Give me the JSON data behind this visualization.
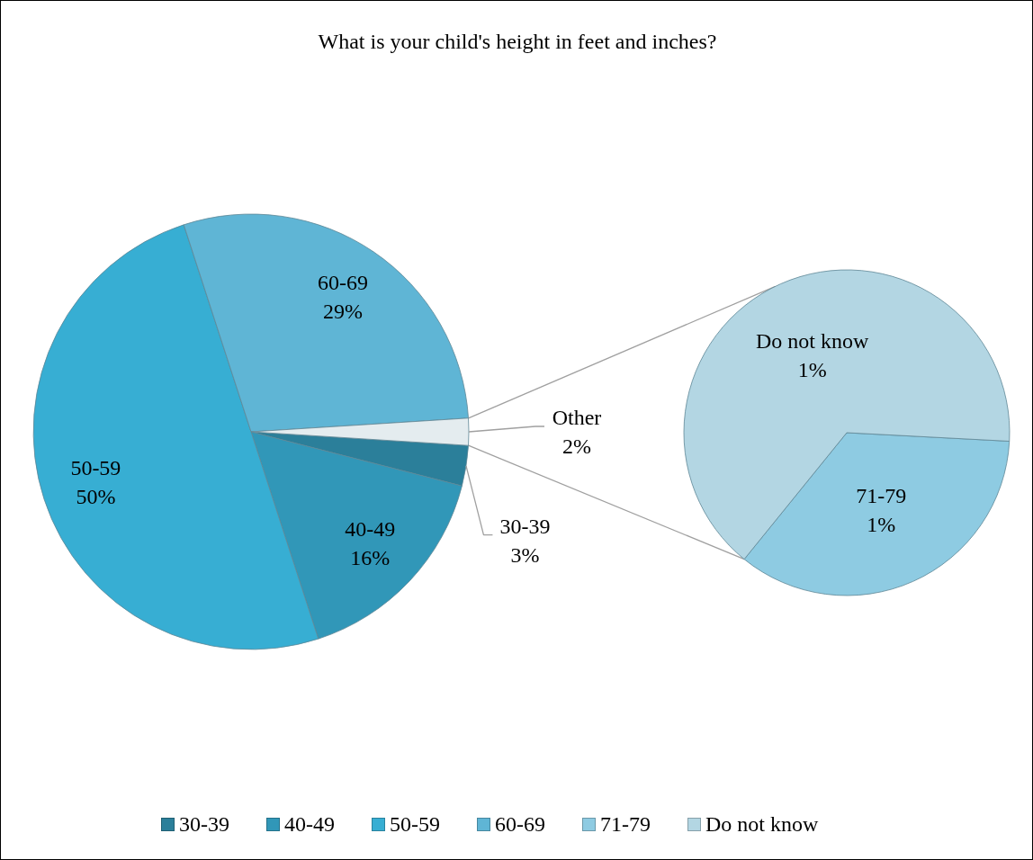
{
  "chart_data": [
    {
      "type": "pie",
      "title": "What is your child's height in feet and inches?",
      "categories": [
        "30-39",
        "40-49",
        "50-59",
        "60-69",
        "Other"
      ],
      "values": [
        3,
        16,
        50,
        29,
        2
      ],
      "colors": [
        "#2b7f9a",
        "#3197b8",
        "#37aed3",
        "#5fb5d5",
        "#e4ecef"
      ],
      "value_labels": [
        "3%",
        "16%",
        "50%",
        "29%",
        "2%"
      ],
      "legend": "bottom"
    },
    {
      "type": "pie",
      "categories": [
        "71-79",
        "Do not know"
      ],
      "values": [
        0.7,
        1.3
      ],
      "colors": [
        "#8ecbe2",
        "#b3d6e3"
      ],
      "value_labels": [
        "1%",
        "1%"
      ],
      "legend": "bottom"
    }
  ]
}
